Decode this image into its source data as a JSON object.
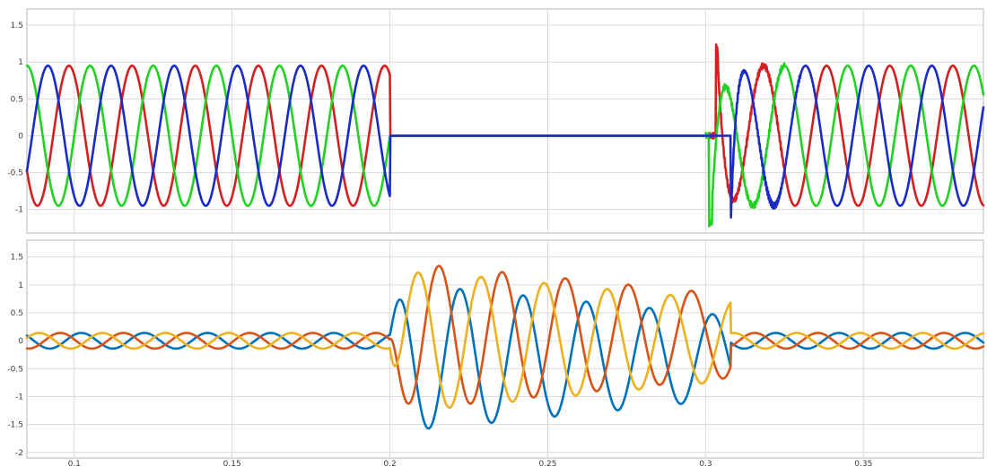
{
  "chart_data": [
    {
      "type": "line",
      "title": "",
      "xlabel": "",
      "ylabel": "",
      "xlim": [
        0.085,
        0.388
      ],
      "ylim": [
        -1.32,
        1.72
      ],
      "grid": true,
      "legend": "none",
      "yticks": [
        -1,
        -0.5,
        0,
        0.5,
        1,
        1.5
      ],
      "ytick_labels": [
        "-1",
        "-0.5",
        "0",
        "0.5",
        "1",
        "1.5"
      ],
      "xticks": [
        0.1,
        0.15,
        0.2,
        0.25,
        0.3,
        0.35
      ],
      "frequency_hz": 50,
      "series": [
        {
          "color": "#d42020",
          "amplitude": 0.95,
          "phase_deg": 120
        },
        {
          "color": "#22d222",
          "amplitude": 0.95,
          "phase_deg": 0
        },
        {
          "color": "#1a2bc8",
          "amplitude": 0.95,
          "phase_deg": 240
        }
      ],
      "intervals": [
        {
          "x_start": 0.085,
          "x_end": 0.2,
          "state": "sinusoidal"
        },
        {
          "x_start": 0.2,
          "x_end": 0.301,
          "state": "zero"
        },
        {
          "x_start": 0.301,
          "x_end": 0.308,
          "state": "transient"
        },
        {
          "x_start": 0.308,
          "x_end": 0.388,
          "state": "sinusoidal"
        }
      ],
      "transient_peaks": [
        {
          "color": "#d42020",
          "x": 0.3035,
          "y": 1.22
        },
        {
          "color": "#22d222",
          "x": 0.302,
          "y": -1.19
        },
        {
          "color": "#1a2bc8",
          "x": 0.3085,
          "y": -1.12
        }
      ]
    },
    {
      "type": "line",
      "title": "",
      "xlabel": "",
      "ylabel": "",
      "xlim": [
        0.085,
        0.388
      ],
      "ylim": [
        -2.1,
        1.8
      ],
      "grid": true,
      "legend": "none",
      "yticks": [
        -2,
        -1.5,
        -1,
        -0.5,
        0,
        0.5,
        1,
        1.5
      ],
      "ytick_labels": [
        "-2",
        "-1.5",
        "-1",
        "-0.5",
        "0",
        "0.5",
        "1",
        "1.5"
      ],
      "xticks": [
        0.1,
        0.15,
        0.2,
        0.25,
        0.3,
        0.35
      ],
      "xtick_labels": [
        "0.1",
        "0.15",
        "0.2",
        "0.25",
        "0.3",
        "0.35"
      ],
      "frequency_hz": 50,
      "series": [
        {
          "color": "#0072bd",
          "amplitude_normal": 0.14,
          "phase_deg": 50,
          "amplitude_disturbed": 1.35,
          "offset_disturbed": -0.3,
          "peak_min": -1.7
        },
        {
          "color": "#d95319",
          "amplitude_normal": 0.14,
          "phase_deg": 170,
          "amplitude_disturbed": 1.35,
          "offset_disturbed": 0.08,
          "peak_max": 1.43
        },
        {
          "color": "#edb120",
          "amplitude_normal": 0.14,
          "phase_deg": 290,
          "amplitude_disturbed": 1.3,
          "offset_disturbed": 0.0,
          "peak_max": 1.25
        }
      ],
      "disturbance_interval": [
        0.2,
        0.308
      ],
      "disturbance_decay": 0.45
    }
  ]
}
